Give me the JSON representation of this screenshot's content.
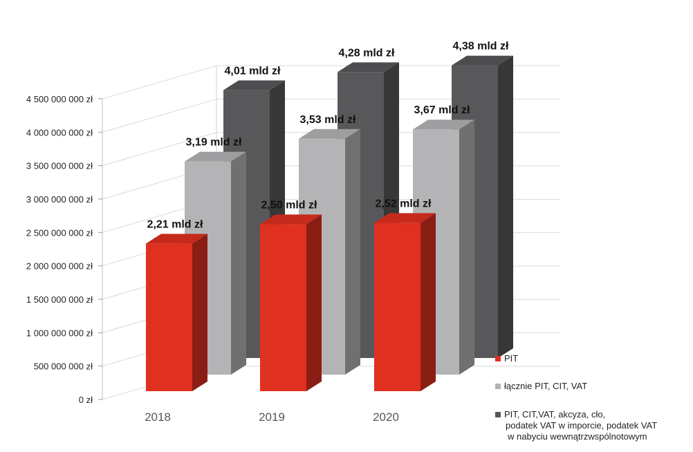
{
  "chart_data": {
    "type": "bar",
    "style": "3d-clustered-depth",
    "categories": [
      "2018",
      "2019",
      "2020"
    ],
    "y_ticks": [
      "0 zł",
      "500 000 000 zł",
      "1 000 000 000 zł",
      "1 500 000 000 zł",
      "2 000 000 000 zł",
      "2 500 000 000 zł",
      "3 000 000 000 zł",
      "3 500 000 000 zł",
      "4 000 000 000 zł",
      "4 500 000 000 zł"
    ],
    "ylim": [
      0,
      4500000000
    ],
    "grid": true,
    "legend_position": "right",
    "series": [
      {
        "name": "PIT",
        "color": "#e03020",
        "values": [
          2210000000,
          2500000000,
          2520000000
        ],
        "labels": [
          "2,21 mld zł",
          "2,50 mld zł",
          "2,52 mld zł"
        ]
      },
      {
        "name": "łącznie PIT, CIT, VAT",
        "color": "#b4b4b6",
        "values": [
          3190000000,
          3530000000,
          3670000000
        ],
        "labels": [
          "3,19 mld zł",
          "3,53 mld zł",
          "3,67 mld zł"
        ]
      },
      {
        "name": "PIT, CIT,VAT, akcyza, cło, podatek VAT w imporcie, podatek VAT w nabyciu wewnątrzwspólnotowym",
        "legend_lines": [
          "PIT, CIT,VAT, akcyza, cło,",
          "podatek VAT w imporcie, podatek VAT",
          "w nabyciu wewnątrzwspólnotowym"
        ],
        "color": "#58585b",
        "values": [
          4010000000,
          4280000000,
          4380000000
        ],
        "labels": [
          "4,01 mld zł",
          "4,28 mld zł",
          "4,38 mld zł"
        ]
      }
    ]
  }
}
